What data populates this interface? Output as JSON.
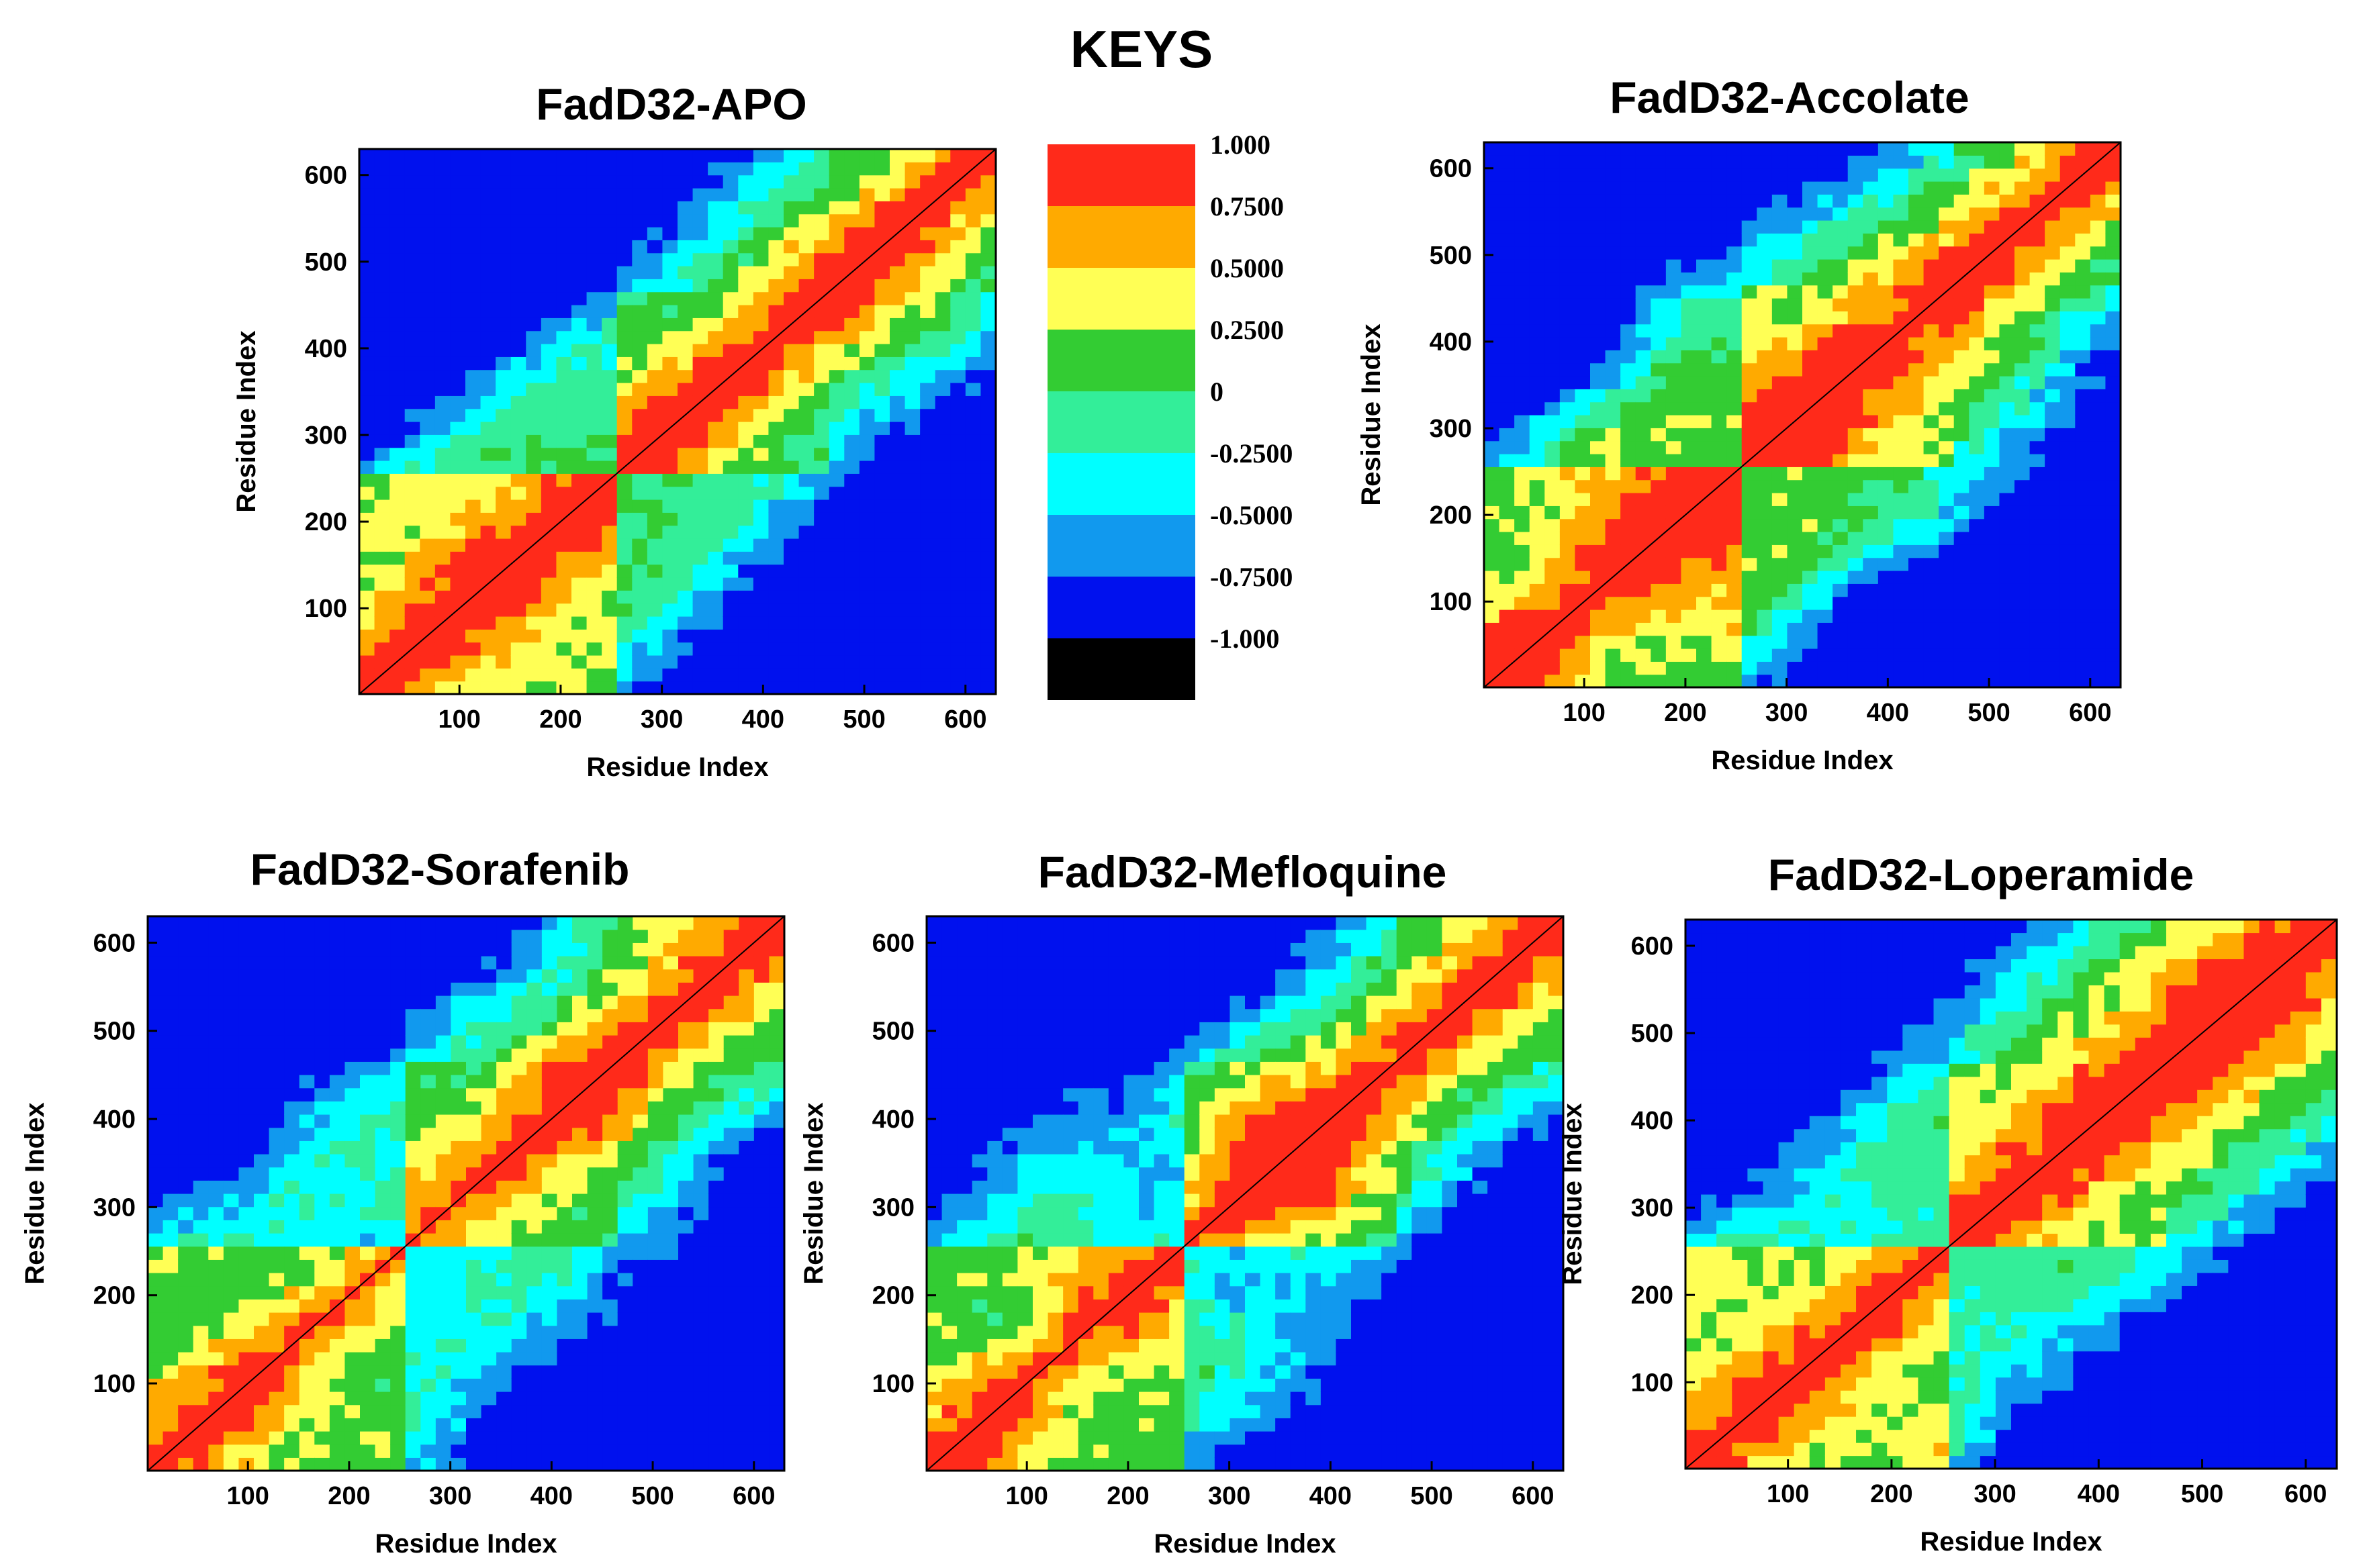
{
  "figure": {
    "keys_title": "KEYS"
  },
  "color_key": {
    "levels": [
      {
        "label": "1.000",
        "color": "#ff2a1a"
      },
      {
        "label": "0.7500",
        "color": "#ffaa00"
      },
      {
        "label": "0.5000",
        "color": "#ffff55"
      },
      {
        "label": "0.2500",
        "color": "#33cc33"
      },
      {
        "label": "0",
        "color": "#33ee99"
      },
      {
        "label": "-0.2500",
        "color": "#00ffff"
      },
      {
        "label": "-0.5000",
        "color": "#1199ee"
      },
      {
        "label": "-0.7500",
        "color": "#0011ee"
      },
      {
        "label": "-1.000",
        "color": "#000000"
      }
    ]
  },
  "chart_data": [
    {
      "type": "heatmap",
      "title": "FadD32-APO",
      "xlabel": "Residue Index",
      "ylabel": "Residue Index",
      "xlim": [
        1,
        630
      ],
      "ylim": [
        1,
        630
      ],
      "xticks": [
        "100",
        "200",
        "300",
        "400",
        "500",
        "600"
      ],
      "yticks": [
        "100",
        "200",
        "300",
        "400",
        "500",
        "600"
      ],
      "seed": 1
    },
    {
      "type": "heatmap",
      "title": "FadD32-Accolate",
      "xlabel": "Residue Index",
      "ylabel": "Residue Index",
      "xlim": [
        1,
        630
      ],
      "ylim": [
        1,
        630
      ],
      "xticks": [
        "100",
        "200",
        "300",
        "400",
        "500",
        "600"
      ],
      "yticks": [
        "100",
        "200",
        "300",
        "400",
        "500",
        "600"
      ],
      "seed": 2
    },
    {
      "type": "heatmap",
      "title": "FadD32-Sorafenib",
      "xlabel": "Residue Index",
      "ylabel": "Residue Index",
      "xlim": [
        1,
        630
      ],
      "ylim": [
        1,
        630
      ],
      "xticks": [
        "100",
        "200",
        "300",
        "400",
        "500",
        "600"
      ],
      "yticks": [
        "100",
        "200",
        "300",
        "400",
        "500",
        "600"
      ],
      "seed": 3
    },
    {
      "type": "heatmap",
      "title": "FadD32-Mefloquine",
      "xlabel": "Residue Index",
      "ylabel": "Residue Index",
      "xlim": [
        1,
        630
      ],
      "ylim": [
        1,
        630
      ],
      "xticks": [
        "100",
        "200",
        "300",
        "400",
        "500",
        "600"
      ],
      "yticks": [
        "100",
        "200",
        "300",
        "400",
        "500",
        "600"
      ],
      "seed": 4
    },
    {
      "type": "heatmap",
      "title": "FadD32-Loperamide",
      "xlabel": "Residue Index",
      "ylabel": "Residue Index",
      "xlim": [
        1,
        630
      ],
      "ylim": [
        1,
        630
      ],
      "xticks": [
        "100",
        "200",
        "300",
        "400",
        "500",
        "600"
      ],
      "yticks": [
        "100",
        "200",
        "300",
        "400",
        "500",
        "600"
      ],
      "seed": 5
    }
  ]
}
